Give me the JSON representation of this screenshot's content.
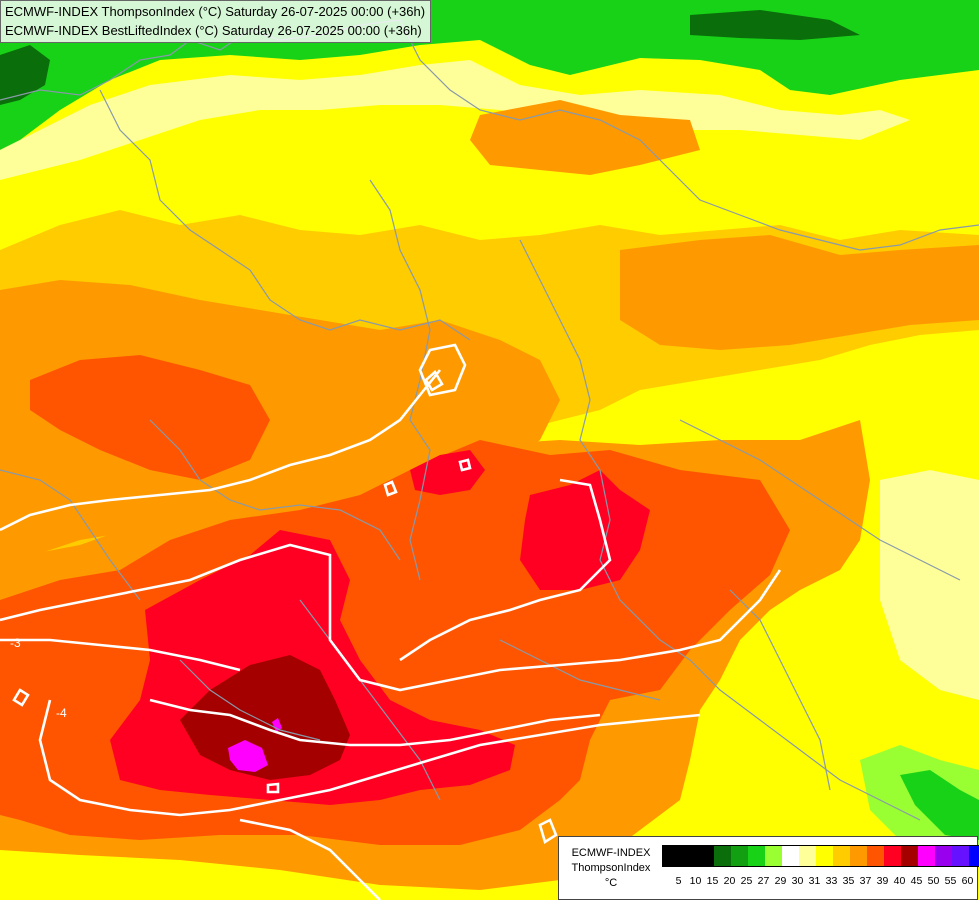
{
  "titles": {
    "line1": "ECMWF-INDEX ThompsonIndex (°C) Saturday 26-07-2025 00:00 (+36h)",
    "line2": "ECMWF-INDEX BestLiftedIndex (°C) Saturday 26-07-2025 00:00 (+36h)"
  },
  "contour_labels": [
    "-3",
    "-4"
  ],
  "legend": {
    "model": "ECMWF-INDEX",
    "parameter": "ThompsonIndex",
    "unit": "°C",
    "labels": [
      "5",
      "10",
      "15",
      "20",
      "25",
      "27",
      "29",
      "30",
      "31",
      "33",
      "35",
      "37",
      "39",
      "40",
      "45",
      "50",
      "55",
      "60"
    ],
    "colors": [
      "#000000",
      "#000000",
      "#000000",
      "#0a6e0a",
      "#12a012",
      "#17d217",
      "#99ff33",
      "#ffffff",
      "#ffff99",
      "#ffff00",
      "#ffcc00",
      "#ff9900",
      "#ff5500",
      "#ff0022",
      "#a40000",
      "#ff00ff",
      "#9900ee",
      "#6611ff",
      "#0000ff"
    ]
  },
  "colors": {
    "green_dark": "#0a6e0a",
    "green": "#17d217",
    "green_light": "#99ff33",
    "yellow_pale": "#ffff99",
    "yellow": "#ffff00",
    "yellow_orange": "#ffcc00",
    "orange": "#ff9900",
    "orange_red": "#ff5500",
    "red": "#ff0022",
    "dark_red": "#a40000",
    "magenta": "#ff00ff"
  }
}
